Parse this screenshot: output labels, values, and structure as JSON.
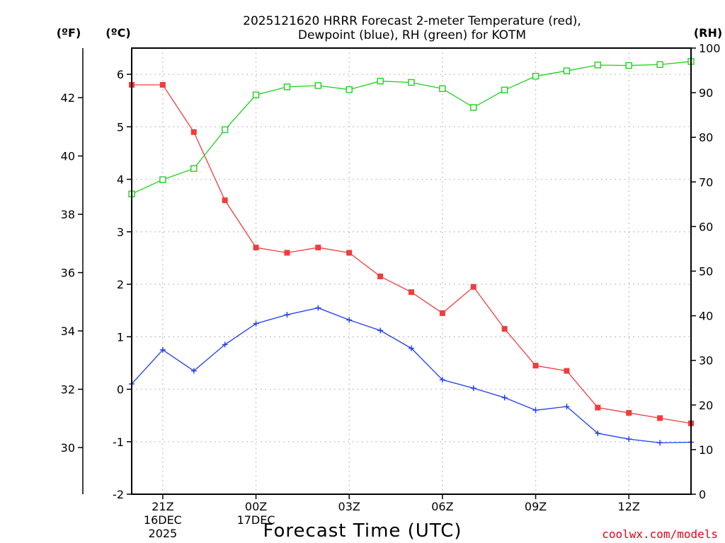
{
  "chart_data": {
    "type": "line",
    "title_line1": "2025121620 HRRR Forecast 2-meter Temperature (red),",
    "title_line2": "Dewpoint (blue), RH (green) for KOTM",
    "unit_f": "(ºF)",
    "unit_c": "(ºC)",
    "unit_rh": "(RH)",
    "xlabel": "Forecast Time (UTC)",
    "credit": "coolwx.com/models",
    "ylim_c": [
      -2,
      6.5
    ],
    "ylim_rh": [
      0,
      100
    ],
    "ylim_f": [
      28.4,
      43.7
    ],
    "x_range": [
      -1,
      17
    ],
    "celsius_ticks": [
      "-2",
      "-1",
      "0",
      "1",
      "2",
      "3",
      "4",
      "5",
      "6"
    ],
    "fahrenheit_ticks": [
      "30",
      "32",
      "34",
      "36",
      "38",
      "40",
      "42"
    ],
    "rh_ticks": [
      "0",
      "10",
      "20",
      "30",
      "40",
      "50",
      "60",
      "70",
      "80",
      "90",
      "100"
    ],
    "x_ticks": [
      {
        "x": 0,
        "lines": [
          "21Z",
          "16DEC",
          "2025"
        ]
      },
      {
        "x": 3,
        "lines": [
          "00Z",
          "17DEC"
        ]
      },
      {
        "x": 6,
        "lines": [
          "03Z"
        ]
      },
      {
        "x": 9,
        "lines": [
          "06Z"
        ]
      },
      {
        "x": 12,
        "lines": [
          "09Z"
        ]
      },
      {
        "x": 15,
        "lines": [
          "12Z"
        ]
      }
    ],
    "series": [
      {
        "name": "2-meter Temperature",
        "unit": "C",
        "color": "#f03c3c",
        "marker": "filled-square",
        "x": [
          -1,
          0,
          1,
          2,
          3,
          4,
          5,
          6,
          7,
          8,
          9,
          10,
          11,
          12,
          13,
          14,
          15,
          16,
          17
        ],
        "values": [
          5.8,
          5.8,
          4.9,
          3.6,
          2.7,
          2.6,
          2.7,
          2.6,
          2.15,
          1.85,
          1.45,
          1.95,
          1.15,
          0.45,
          0.35,
          -0.35,
          -0.45,
          -0.55,
          -0.65
        ]
      },
      {
        "name": "Dewpoint",
        "unit": "C",
        "color": "#1e3cf0",
        "marker": "plus",
        "x": [
          -1,
          0,
          1,
          2,
          3,
          4,
          5,
          6,
          7,
          8,
          9,
          10,
          11,
          12,
          13,
          14,
          15,
          16,
          17
        ],
        "values": [
          0.1,
          0.75,
          0.35,
          0.85,
          1.25,
          1.42,
          1.55,
          1.32,
          1.12,
          0.78,
          0.18,
          0.02,
          -0.16,
          -0.4,
          -0.33,
          -0.84,
          -0.95,
          -1.02,
          -1.01
        ]
      },
      {
        "name": "RH",
        "unit": "%",
        "color": "#1ed21e",
        "marker": "open-square",
        "x": [
          -1,
          0,
          1,
          2,
          3,
          4,
          5,
          6,
          7,
          8,
          9,
          10,
          11,
          12,
          13,
          14,
          15,
          16,
          17
        ],
        "values": [
          67.3,
          70.5,
          73.0,
          81.7,
          89.5,
          91.3,
          91.6,
          90.7,
          92.6,
          92.3,
          90.9,
          86.7,
          90.6,
          93.7,
          94.9,
          96.2,
          96.1,
          96.3,
          97.0
        ]
      }
    ]
  }
}
